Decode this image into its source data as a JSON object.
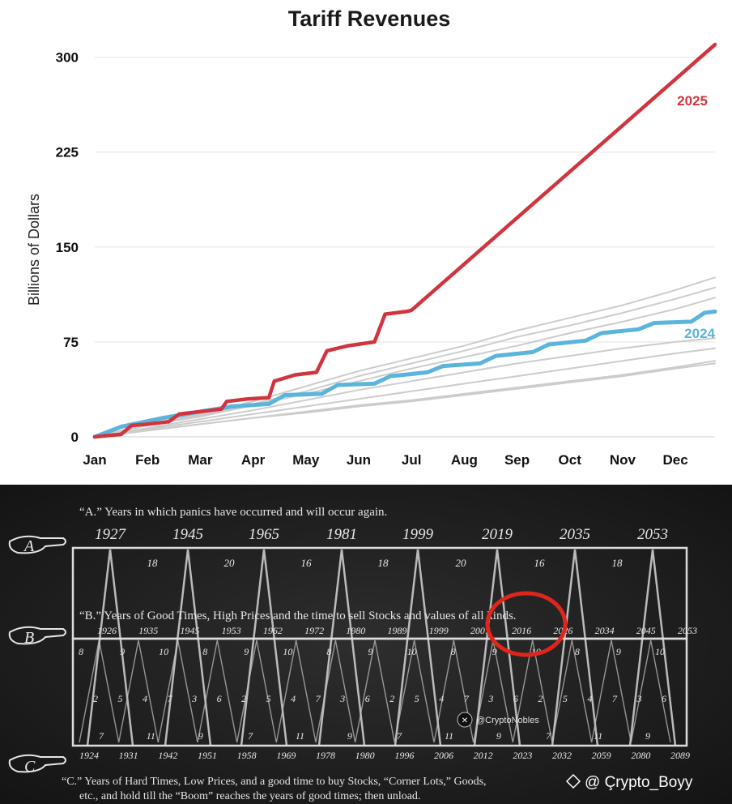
{
  "chart_data": {
    "type": "line",
    "title": "Tariff Revenues",
    "xlabel": "",
    "ylabel": "Billions of Dollars",
    "categories": [
      "Jan",
      "Feb",
      "Mar",
      "Apr",
      "May",
      "Jun",
      "Jul",
      "Aug",
      "Sep",
      "Oct",
      "Nov",
      "Dec"
    ],
    "x_range": [
      0,
      11.75
    ],
    "yticks": [
      0,
      75,
      150,
      225,
      300
    ],
    "ylim": [
      0,
      310
    ],
    "grid": true,
    "legend": "inline labels at line ends",
    "colors": {
      "s2025": "#d0353f",
      "s2024": "#5ab4dc",
      "past": "#cccccc"
    },
    "series": [
      {
        "name": "2025",
        "color": "#d0353f",
        "x": [
          0,
          0.5,
          0.7,
          1.0,
          1.4,
          1.6,
          2.0,
          2.4,
          2.5,
          2.9,
          3.3,
          3.4,
          3.8,
          4.2,
          4.4,
          4.8,
          5.3,
          5.5,
          5.9,
          6.0,
          11.75
        ],
        "y": [
          0,
          2,
          9,
          10,
          12,
          18,
          20,
          22,
          28,
          30,
          31,
          44,
          49,
          51,
          68,
          72,
          75,
          97,
          99,
          100,
          310
        ]
      },
      {
        "name": "2024",
        "color": "#5ab4dc",
        "x": [
          0,
          0.5,
          1.3,
          2.0,
          2.6,
          3.3,
          3.6,
          4.3,
          4.6,
          5.3,
          5.6,
          6.3,
          6.6,
          7.3,
          7.6,
          8.3,
          8.6,
          9.3,
          9.6,
          10.3,
          10.6,
          11.3,
          11.55,
          11.75
        ],
        "y": [
          0,
          8,
          15,
          20,
          24,
          26,
          33,
          34,
          41,
          42,
          48,
          51,
          56,
          58,
          64,
          67,
          73,
          76,
          82,
          85,
          90,
          91,
          98,
          99
        ]
      },
      {
        "name": "",
        "color": "#cccccc",
        "x": [
          0,
          1,
          2,
          3,
          4,
          5,
          6,
          7,
          8,
          9,
          10,
          11,
          11.75
        ],
        "y": [
          0,
          10,
          18,
          28,
          40,
          52,
          62,
          72,
          84,
          94,
          104,
          116,
          126
        ]
      },
      {
        "name": "",
        "color": "#cccccc",
        "x": [
          0,
          1,
          2,
          3,
          4,
          5,
          6,
          7,
          8,
          9,
          10,
          11,
          11.75
        ],
        "y": [
          0,
          9,
          17,
          26,
          36,
          48,
          58,
          68,
          79,
          88,
          98,
          109,
          118
        ]
      },
      {
        "name": "",
        "color": "#cccccc",
        "x": [
          0,
          1,
          2,
          3,
          4,
          5,
          6,
          7,
          8,
          9,
          10,
          11,
          11.75
        ],
        "y": [
          0,
          9,
          16,
          25,
          34,
          44,
          54,
          63,
          72,
          82,
          91,
          101,
          110
        ]
      },
      {
        "name": "",
        "color": "#cccccc",
        "x": [
          0,
          1,
          2,
          3,
          4,
          5,
          6,
          7,
          8,
          9,
          10,
          11,
          11.75
        ],
        "y": [
          0,
          7,
          14,
          21,
          29,
          37,
          44,
          51,
          58,
          64,
          70,
          75,
          78
        ]
      },
      {
        "name": "",
        "color": "#cccccc",
        "x": [
          0,
          1,
          2,
          3,
          4,
          5,
          6,
          7,
          8,
          9,
          10,
          11,
          11.75
        ],
        "y": [
          0,
          6,
          12,
          18,
          24,
          30,
          36,
          42,
          48,
          54,
          60,
          66,
          70
        ]
      },
      {
        "name": "",
        "color": "#cccccc",
        "x": [
          0,
          1,
          2,
          3,
          4,
          5,
          6,
          7,
          8,
          9,
          10,
          11,
          11.75
        ],
        "y": [
          0,
          5,
          10,
          15,
          20,
          25,
          29,
          34,
          39,
          44,
          49,
          55,
          60
        ]
      },
      {
        "name": "",
        "color": "#cccccc",
        "x": [
          0,
          1,
          2,
          3,
          4,
          5,
          6,
          7,
          8,
          9,
          10,
          11,
          11.75
        ],
        "y": [
          0,
          5,
          10,
          15,
          19,
          24,
          28,
          33,
          38,
          43,
          48,
          54,
          58
        ]
      }
    ]
  },
  "cycle_chart": {
    "line_a": "“A.” Years in which panics have occurred and will occur again.",
    "line_b": "“B.” Years of Good Times, High Prices and the time to sell Stocks and values of all kinds.",
    "line_c1": "“C.” Years of Hard Times, Low Prices, and a good time to buy Stocks, “Corner Lots,” Goods,",
    "line_c2": "etc., and hold till the “Boom” reaches the years of good times; then unload.",
    "marker_a": "A",
    "marker_b": "B",
    "marker_c": "C",
    "panic_years": [
      "1927",
      "1945",
      "1965",
      "1981",
      "1999",
      "2019",
      "2035",
      "2053"
    ],
    "panic_intervals": [
      "18",
      "20",
      "16",
      "18",
      "20",
      "16",
      "18"
    ],
    "good_years": [
      "1926",
      "1935",
      "1945",
      "1953",
      "1962",
      "1972",
      "1980",
      "1989",
      "1999",
      "2007",
      "2016",
      "2026",
      "2034",
      "2045",
      "2053"
    ],
    "hard_years": [
      "1924",
      "1931",
      "1942",
      "1951",
      "1958",
      "1969",
      "1978",
      "1980",
      "1996",
      "2006",
      "2012",
      "2023",
      "2032",
      "2059",
      "2080",
      "2089"
    ],
    "hard_numbers_top": [
      "8",
      "9",
      "10",
      "8",
      "9",
      "10",
      "8",
      "9",
      "10",
      "8",
      "9",
      "10",
      "8",
      "9",
      "10"
    ],
    "hard_numbers_mid": [
      "2",
      "5",
      "4",
      "7",
      "3",
      "6",
      "2",
      "5",
      "4",
      "7",
      "3",
      "6",
      "2",
      "5",
      "4",
      "7",
      "3",
      "6",
      "2",
      "5",
      "4",
      "7",
      "3",
      "6"
    ],
    "hard_numbers_bottom": [
      "7",
      "11",
      "9",
      "7",
      "11",
      "9",
      "7",
      "11",
      "9",
      "7",
      "11",
      "9"
    ],
    "highlight_color": "#e0251c"
  },
  "watermarks": {
    "cryptonobles": "@CryptoNobles",
    "crypto_boyy": "@ Çrypto_Boyy"
  }
}
